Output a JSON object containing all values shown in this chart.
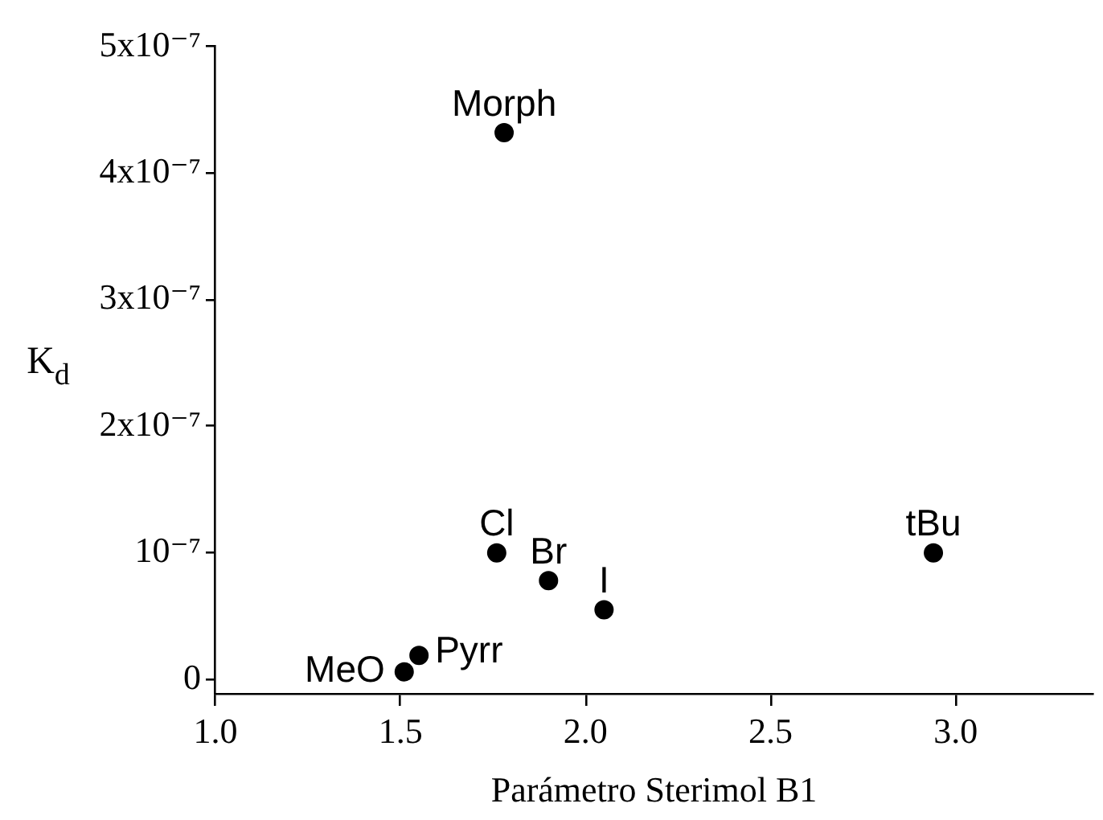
{
  "chart_data": {
    "type": "scatter",
    "xlabel": "Parámetro Sterimol B1",
    "ylabel": "K$_{d}$",
    "x": [
      1.51,
      1.55,
      1.76,
      1.9,
      2.05,
      2.94,
      1.78
    ],
    "values": [
      6e-09,
      1.9e-08,
      1e-07,
      7.8e-08,
      5.5e-08,
      1e-07,
      4.32e-07
    ],
    "color": "#000000",
    "marker": "circle",
    "xlim": [
      1,
      3.37
    ],
    "xticks": [
      {
        "value": 1,
        "label": "1.0"
      },
      {
        "value": 1.5,
        "label": "1.5"
      },
      {
        "value": 2,
        "label": "2.0"
      },
      {
        "value": 2.5,
        "label": "2.5"
      },
      {
        "value": 3,
        "label": "3.0"
      }
    ],
    "ylim": [
      -1.2e-08,
      5e-07
    ],
    "yticks": [
      0,
      {
        "value": 1e-07,
        "label": "10⁻⁷"
      },
      {
        "value": 2e-07,
        "label": "2x10⁻⁷"
      },
      {
        "value": 3e-07,
        "label": "3x10⁻⁷"
      },
      {
        "value": 4e-07,
        "label": "4x10⁻⁷"
      },
      {
        "value": 5e-07,
        "label": "5x10⁻⁷"
      }
    ],
    "annotations": [
      {
        "text": "MeO",
        "x": 1.51,
        "y": 6e-09
      },
      {
        "text": "Pyrr",
        "x": 1.55,
        "y": 1.9e-08
      },
      {
        "text": "Cl",
        "x": 1.76,
        "y": 1e-07
      },
      {
        "text": "Br",
        "x": 1.9,
        "y": 7.8e-08
      },
      {
        "text": "I",
        "x": 2.05,
        "y": 5.5e-08
      },
      {
        "text": "tBu",
        "x": 2.94,
        "y": 1e-07
      },
      {
        "text": "Morph",
        "x": 1.78,
        "y": 4.32e-07
      }
    ]
  }
}
